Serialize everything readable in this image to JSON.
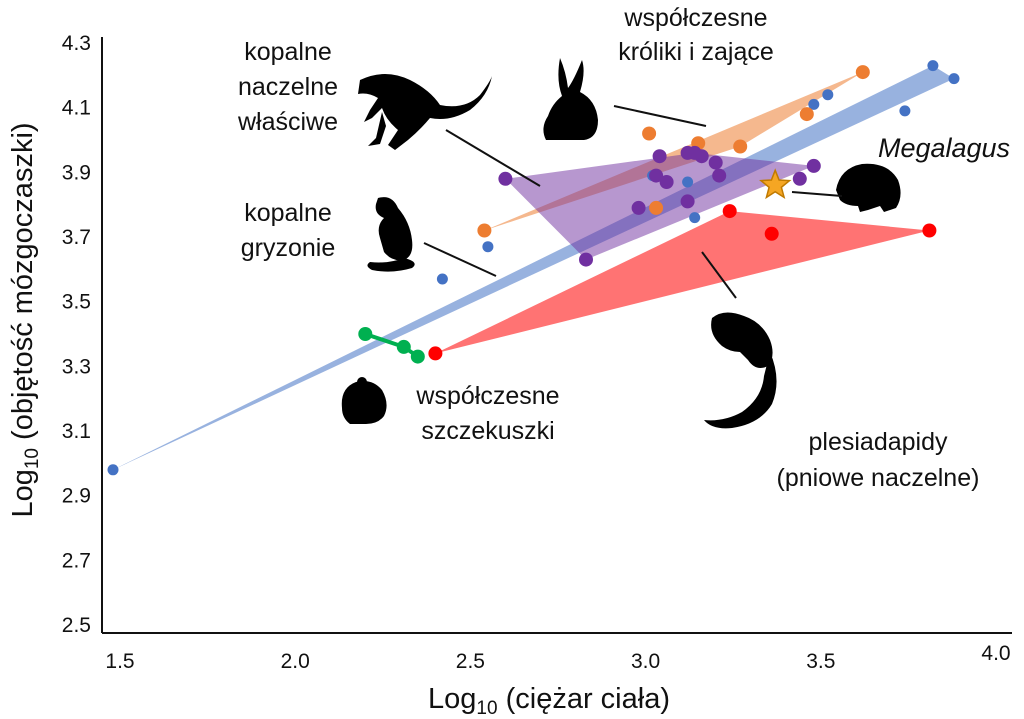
{
  "chart_data": {
    "type": "scatter",
    "xlabel": "Log10 (ciężar ciała)",
    "ylabel": "Log10 (objętość mózgoczaszki)",
    "xlim": [
      1.5,
      4.0
    ],
    "ylim": [
      2.5,
      4.3
    ],
    "xticks": [
      "1.5",
      "2.0",
      "2.5",
      "3.0",
      "3.5",
      "4.0"
    ],
    "yticks": [
      "2.5",
      "2.7",
      "2.9",
      "3.1",
      "3.3",
      "3.5",
      "3.7",
      "3.9",
      "4.1",
      "4.3"
    ],
    "grid": false,
    "colors": {
      "kopalne_gryzonie": "#4472c4",
      "kroliki": "#ed7d31",
      "naczelne": "#7030a0",
      "plesiadapidy": "#ff0000",
      "szczekuszki": "#00b050",
      "megalagus": "#f5a623"
    },
    "series": [
      {
        "name": "kopalne gryzonie",
        "key": "kopalne_gryzonie",
        "hull": [
          [
            1.48,
            2.98
          ],
          [
            3.82,
            4.23
          ],
          [
            3.88,
            4.19
          ]
        ],
        "points": [
          [
            1.48,
            2.98
          ],
          [
            2.42,
            3.57
          ],
          [
            2.55,
            3.67
          ],
          [
            3.14,
            3.76
          ],
          [
            3.48,
            4.11
          ],
          [
            3.52,
            4.14
          ],
          [
            3.74,
            4.09
          ],
          [
            3.82,
            4.23
          ],
          [
            3.88,
            4.19
          ],
          [
            3.02,
            3.89
          ],
          [
            3.12,
            3.87
          ]
        ]
      },
      {
        "name": "współczesne króliki i zające",
        "key": "kroliki",
        "hull": [
          [
            2.54,
            3.72
          ],
          [
            3.62,
            4.21
          ],
          [
            3.27,
            3.98
          ]
        ],
        "points": [
          [
            2.54,
            3.72
          ],
          [
            3.01,
            4.02
          ],
          [
            3.15,
            3.99
          ],
          [
            3.27,
            3.98
          ],
          [
            3.46,
            4.08
          ],
          [
            3.62,
            4.21
          ],
          [
            3.03,
            3.79
          ]
        ]
      },
      {
        "name": "kopalne naczelne właściwe",
        "key": "naczelne",
        "hull": [
          [
            2.6,
            3.88
          ],
          [
            3.14,
            3.96
          ],
          [
            3.48,
            3.92
          ],
          [
            2.83,
            3.63
          ]
        ],
        "points": [
          [
            2.6,
            3.88
          ],
          [
            3.04,
            3.95
          ],
          [
            3.12,
            3.96
          ],
          [
            3.16,
            3.95
          ],
          [
            3.2,
            3.93
          ],
          [
            3.14,
            3.96
          ],
          [
            3.48,
            3.92
          ],
          [
            3.44,
            3.88
          ],
          [
            3.21,
            3.89
          ],
          [
            3.06,
            3.87
          ],
          [
            3.03,
            3.89
          ],
          [
            2.98,
            3.79
          ],
          [
            3.12,
            3.81
          ],
          [
            2.83,
            3.63
          ]
        ]
      },
      {
        "name": "plesiadapidy (pniowe naczelne)",
        "key": "plesiadapidy",
        "hull": [
          [
            2.4,
            3.34
          ],
          [
            3.24,
            3.78
          ],
          [
            3.81,
            3.72
          ]
        ],
        "points": [
          [
            2.4,
            3.34
          ],
          [
            3.24,
            3.78
          ],
          [
            3.36,
            3.71
          ],
          [
            3.81,
            3.72
          ]
        ]
      },
      {
        "name": "współczesne szczekuszki",
        "key": "szczekuszki",
        "hull": [
          [
            2.2,
            3.4
          ],
          [
            2.31,
            3.36
          ],
          [
            2.35,
            3.33
          ]
        ],
        "points": [
          [
            2.2,
            3.4
          ],
          [
            2.31,
            3.36
          ],
          [
            2.35,
            3.33
          ]
        ]
      },
      {
        "name": "Megalagus",
        "key": "megalagus",
        "marker": "star",
        "points": [
          [
            3.37,
            3.86
          ]
        ]
      }
    ],
    "annotations": [
      {
        "lines": [
          "kopalne",
          "naczelne",
          "właściwe"
        ],
        "italic": false
      },
      {
        "lines": [
          "współczesne",
          "króliki i zające"
        ],
        "italic": false
      },
      {
        "lines": [
          "Megalagus"
        ],
        "italic": true
      },
      {
        "lines": [
          "kopalne",
          "gryzonie"
        ],
        "italic": false
      },
      {
        "lines": [
          "współczesne",
          "szczekuszki"
        ],
        "italic": false
      },
      {
        "lines": [
          "plesiadapidy",
          "(pniowe naczelne)"
        ],
        "italic": false
      }
    ]
  }
}
